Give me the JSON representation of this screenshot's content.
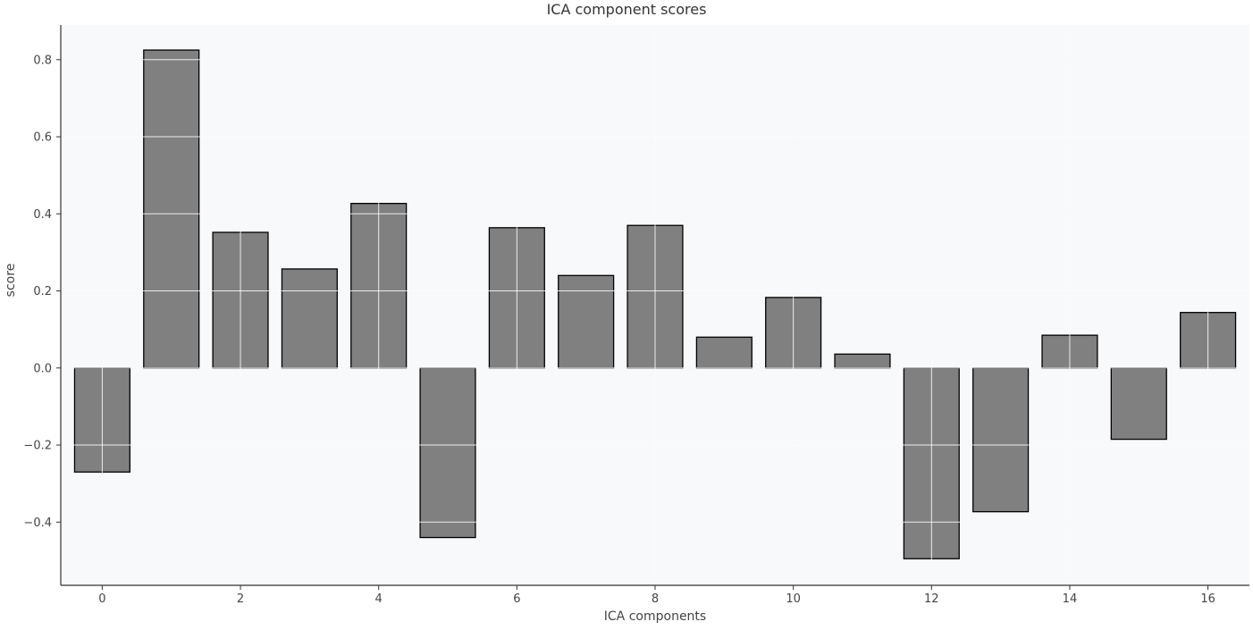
{
  "chart_data": {
    "type": "bar",
    "title": "ICA component scores",
    "xlabel": "ICA components",
    "ylabel": "score",
    "categories": [
      0,
      1,
      2,
      3,
      4,
      5,
      6,
      7,
      8,
      9,
      10,
      11,
      12,
      13,
      14,
      15,
      16
    ],
    "values": [
      -0.27,
      0.825,
      0.352,
      0.257,
      0.427,
      -0.44,
      0.364,
      0.24,
      0.37,
      0.08,
      0.183,
      0.036,
      -0.495,
      -0.373,
      0.085,
      -0.185,
      0.144
    ],
    "xticks": [
      0,
      2,
      4,
      6,
      8,
      10,
      12,
      14,
      16
    ],
    "yticks": [
      -0.4,
      -0.2,
      0.0,
      0.2,
      0.4,
      0.6,
      0.8
    ],
    "xlim": [
      -0.6,
      16.6
    ],
    "ylim": [
      -0.564,
      0.89
    ],
    "grid": true,
    "colors": {
      "bar_fill": "#808080",
      "bar_edge": "#000000",
      "plot_background": "#f8f9fb",
      "grid_line": "#e6e8ec",
      "axis_line": "#333333"
    }
  }
}
